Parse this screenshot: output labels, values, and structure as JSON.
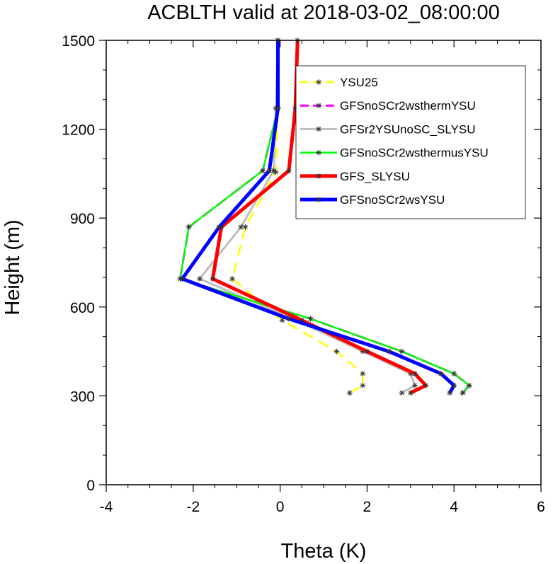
{
  "chart_data": {
    "type": "line",
    "title": "ACBLTH valid at 2018-03-02_08:00:00",
    "xlabel": "Theta (K)",
    "ylabel": "Height (m)",
    "xlim": [
      -4,
      6
    ],
    "ylim": [
      0,
      1500
    ],
    "xticks": [
      -4,
      -2,
      0,
      2,
      4,
      6
    ],
    "xtick_labels": [
      "-4",
      "-2",
      "0",
      "2",
      "4",
      "6"
    ],
    "yticks": [
      0,
      300,
      600,
      900,
      1200,
      1500
    ],
    "ytick_labels": [
      "0",
      "300",
      "600",
      "900",
      "1200",
      "1500"
    ],
    "grid": false,
    "legend_position": "upper-right",
    "series": [
      {
        "name": "YSU25",
        "color": "#ffff00",
        "dash": "dashed",
        "width": 2.5,
        "x": [
          1.6,
          1.9,
          1.9,
          1.3,
          0.05,
          -1.1,
          -0.8,
          -0.1,
          -0.05,
          -0.05
        ],
        "y": [
          310,
          335,
          375,
          450,
          555,
          695,
          870,
          1055,
          1270,
          1500
        ]
      },
      {
        "name": "GFSnoSCr2wsthermYSU",
        "color": "#ff00ff",
        "dash": "dashed",
        "width": 3,
        "x": [
          4.2,
          4.35,
          4.0,
          2.8,
          0.7,
          -2.3,
          -2.1,
          -0.4,
          -0.05,
          -0.05
        ],
        "y": [
          310,
          335,
          375,
          450,
          560,
          695,
          870,
          1060,
          1270,
          1500
        ]
      },
      {
        "name": "GFSr2YSUnoSC_SLYSU",
        "color": "#bebebe",
        "dash": "solid",
        "width": 3,
        "x": [
          2.8,
          3.1,
          3.0,
          1.9,
          0.3,
          -1.85,
          -0.9,
          -0.15,
          -0.1,
          -0.05
        ],
        "y": [
          310,
          335,
          375,
          450,
          560,
          695,
          870,
          1060,
          1270,
          1500
        ]
      },
      {
        "name": "GFSnoSCr2wsthermusYSU",
        "color": "#00ff00",
        "dash": "solid",
        "width": 2.5,
        "x": [
          4.2,
          4.35,
          4.0,
          2.8,
          0.7,
          -2.3,
          -2.1,
          -0.4,
          -0.05,
          -0.05
        ],
        "y": [
          310,
          335,
          375,
          450,
          560,
          695,
          870,
          1060,
          1270,
          1500
        ]
      },
      {
        "name": "GFS_SLYSU",
        "color": "#ff0000",
        "dash": "solid",
        "width": 5,
        "x": [
          3.0,
          3.35,
          3.1,
          2.0,
          0.5,
          -1.55,
          -1.35,
          0.2,
          0.35,
          0.4
        ],
        "y": [
          310,
          335,
          375,
          450,
          555,
          695,
          870,
          1060,
          1270,
          1500
        ]
      },
      {
        "name": "GFSnoSCr2wsYSU",
        "color": "#0000ff",
        "dash": "solid",
        "width": 5,
        "x": [
          3.9,
          4.0,
          3.7,
          2.5,
          0.2,
          -2.25,
          -1.4,
          -0.25,
          -0.05,
          -0.05
        ],
        "y": [
          310,
          335,
          375,
          450,
          560,
          695,
          870,
          1060,
          1270,
          1500
        ]
      }
    ]
  }
}
